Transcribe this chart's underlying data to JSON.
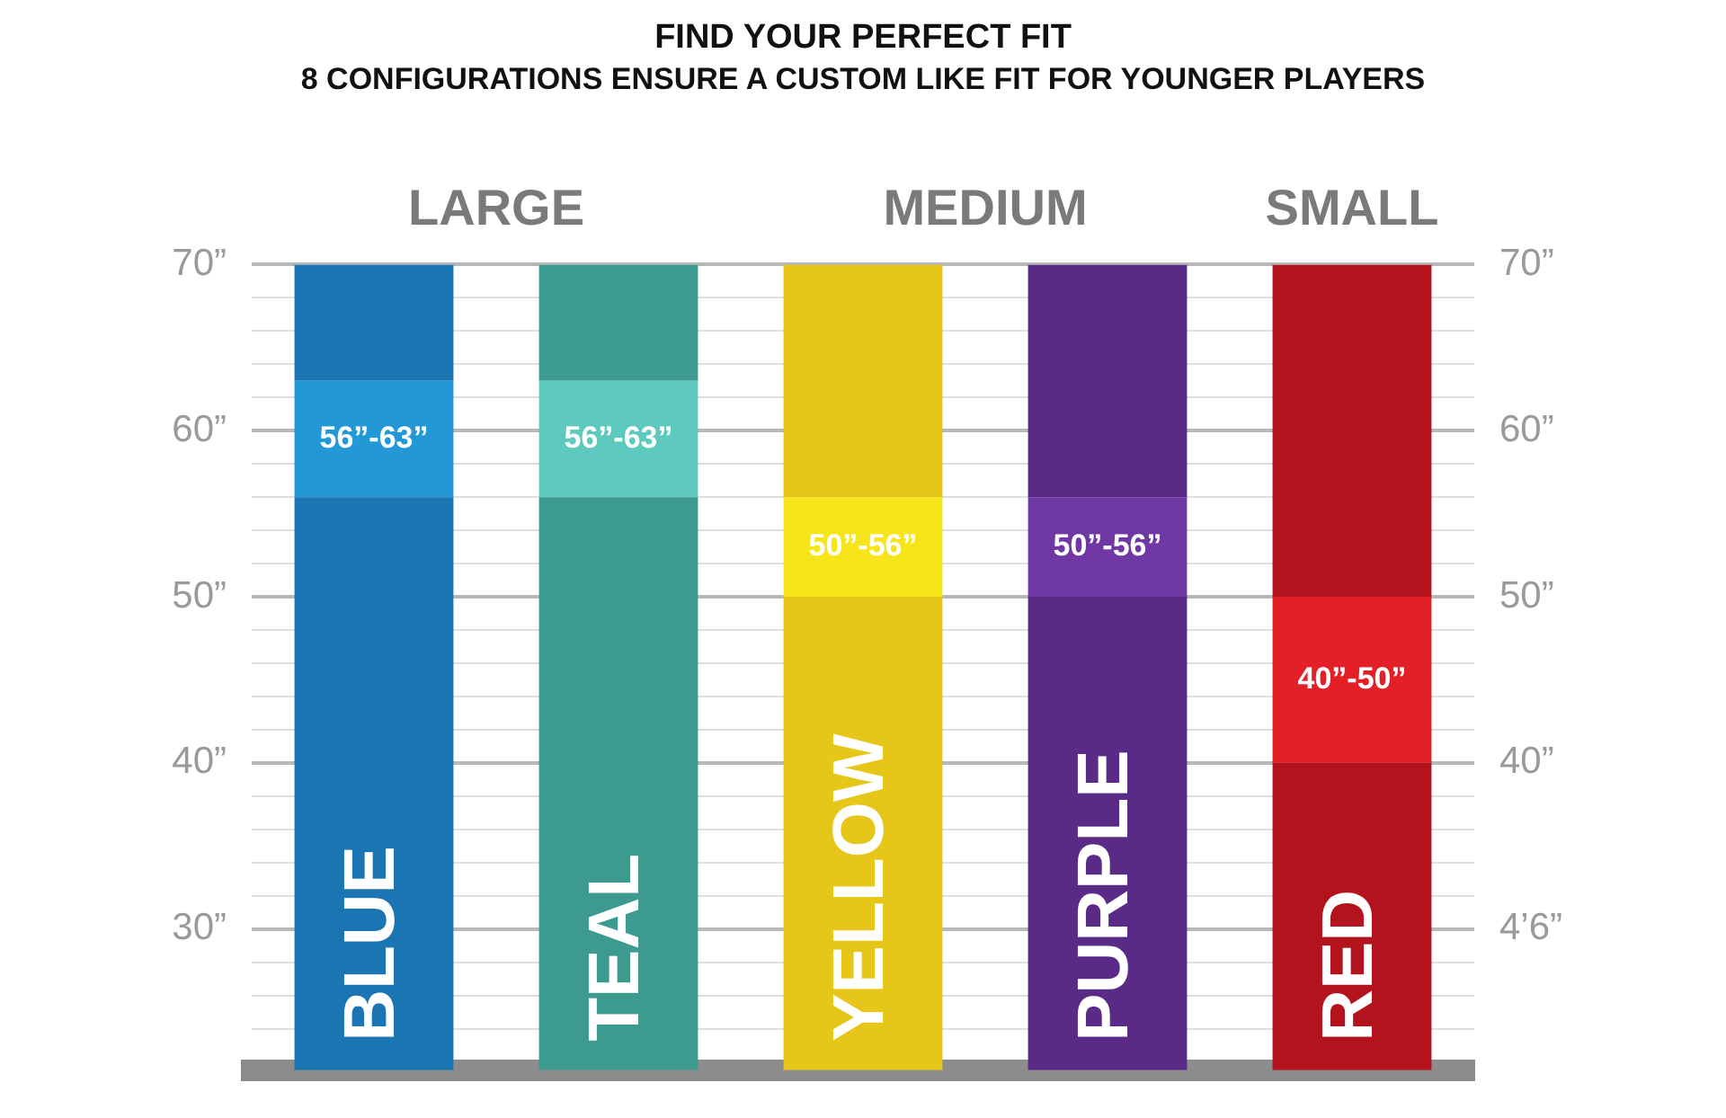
{
  "chart_data": {
    "type": "bar",
    "title": "FIND YOUR PERFECT FIT",
    "subtitle": "8 CONFIGURATIONS ENSURE A CUSTOM LIKE FIT FOR YOUNGER PLAYERS",
    "categories": [
      "BLUE",
      "TEAL",
      "YELLOW",
      "PURPLE",
      "RED"
    ],
    "series": [
      {
        "colors": [
          "#1b75b3",
          "#3d9a8f",
          "#e6c619",
          "#5a2a87",
          "#b3131c"
        ],
        "base": [
          21.5,
          21.5,
          21.5,
          21.5,
          21.5
        ],
        "values": [
          34.5,
          34.5,
          28.5,
          28.5,
          18.5
        ]
      },
      {
        "colors": [
          "#2298d6",
          "#5ec9be",
          "#f7e51b",
          "#7038a4",
          "#e31f27"
        ],
        "base": [
          56,
          56,
          50,
          50,
          40
        ],
        "values": [
          7,
          7,
          6,
          6,
          10
        ]
      },
      {
        "colors": [
          "#1b75b3",
          "#3d9a8f",
          "#e6c619",
          "#5a2a87",
          "#b3131c"
        ],
        "base": [
          63,
          63,
          56,
          56,
          50
        ],
        "values": [
          7,
          7,
          14,
          14,
          20
        ]
      }
    ],
    "annotations": [
      "LARGE",
      "MEDIUM",
      "SMALL",
      "56”-63”",
      "56”-63”",
      "50”-56”",
      "50”-56”",
      "40”-50”"
    ],
    "ylim": [
      21.5,
      70
    ],
    "yticks": [
      {
        "value": 24,
        "label": null
      },
      {
        "value": 26,
        "label": null
      },
      {
        "value": 28,
        "label": null
      },
      {
        "value": 30,
        "label": "30”"
      },
      {
        "value": 32,
        "label": null
      },
      {
        "value": 34,
        "label": null
      },
      {
        "value": 36,
        "label": null
      },
      {
        "value": 38,
        "label": null
      },
      {
        "value": 40,
        "label": "40”"
      },
      {
        "value": 42,
        "label": null
      },
      {
        "value": 44,
        "label": null
      },
      {
        "value": 46,
        "label": null
      },
      {
        "value": 48,
        "label": null
      },
      {
        "value": 50,
        "label": "50”"
      },
      {
        "value": 52,
        "label": null
      },
      {
        "value": 54,
        "label": null
      },
      {
        "value": 56,
        "label": null
      },
      {
        "value": 58,
        "label": null
      },
      {
        "value": 60,
        "label": "60”"
      },
      {
        "value": 62,
        "label": null
      },
      {
        "value": 64,
        "label": null
      },
      {
        "value": 66,
        "label": null
      },
      {
        "value": 68,
        "label": null
      },
      {
        "value": 70,
        "label": "70”"
      }
    ],
    "y2lim": [
      21.5,
      70
    ],
    "y2ticks": [
      {
        "value": 30,
        "label": "4’6”"
      },
      {
        "value": 40,
        "label": "40”"
      },
      {
        "value": 50,
        "label": "50”"
      },
      {
        "value": 60,
        "label": "60”"
      },
      {
        "value": 70,
        "label": "70”"
      }
    ],
    "grid": "y",
    "legend": false
  }
}
